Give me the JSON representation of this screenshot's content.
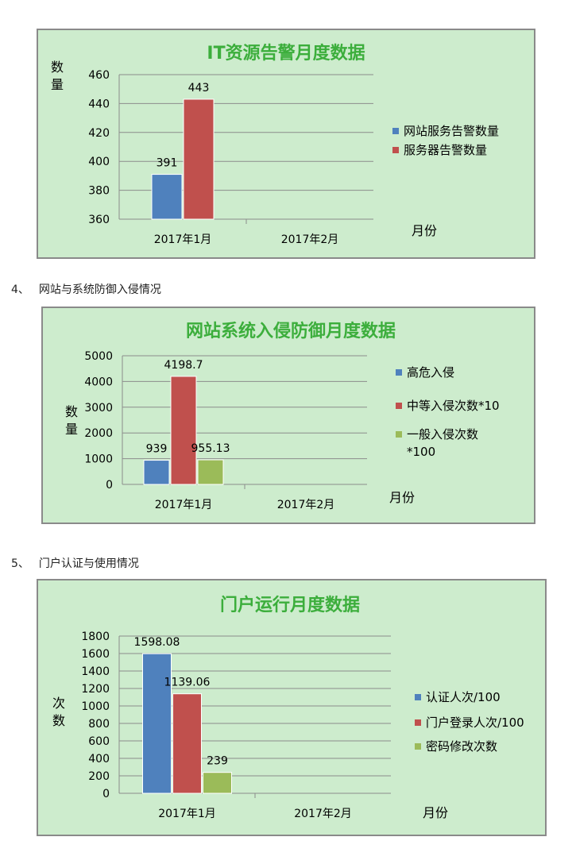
{
  "sections": [
    {
      "number": "4、",
      "title": "网站与系统防御入侵情况"
    },
    {
      "number": "5、",
      "title": "门户认证与使用情况"
    }
  ],
  "colors": {
    "blue": "#4f81bd",
    "red": "#c0504d",
    "green": "#9bbb59",
    "title": "#3cae3c",
    "panel_bg": "#cdeccd"
  },
  "chart_data": [
    {
      "type": "bar",
      "title": "IT资源告警月度数据",
      "ylabel": "数量",
      "xlabel": "月份",
      "categories": [
        "2017年1月",
        "2017年2月"
      ],
      "ylim": [
        360,
        460
      ],
      "yticks": [
        360,
        380,
        400,
        420,
        440,
        460
      ],
      "legend_position": "right",
      "series": [
        {
          "name": "网站服务告警数量",
          "color": "#4f81bd",
          "values": [
            391,
            null
          ],
          "labels": [
            "391",
            ""
          ]
        },
        {
          "name": "服务器告警数量",
          "color": "#c0504d",
          "values": [
            443,
            null
          ],
          "labels": [
            "443",
            ""
          ]
        }
      ]
    },
    {
      "type": "bar",
      "title": "网站系统入侵防御月度数据",
      "ylabel": "数量",
      "xlabel": "月份",
      "categories": [
        "2017年1月",
        "2017年2月"
      ],
      "ylim": [
        0,
        5000
      ],
      "yticks": [
        0,
        1000,
        2000,
        3000,
        4000,
        5000
      ],
      "legend_position": "right",
      "series": [
        {
          "name": "高危入侵",
          "color": "#4f81bd",
          "values": [
            939,
            null
          ],
          "labels": [
            "939",
            ""
          ]
        },
        {
          "name": "中等入侵次数*10",
          "color": "#c0504d",
          "values": [
            4198.7,
            null
          ],
          "labels": [
            "4198.7",
            ""
          ]
        },
        {
          "name": "一般入侵次数 *100",
          "color": "#9bbb59",
          "values": [
            955.13,
            null
          ],
          "labels": [
            "955.13",
            ""
          ]
        }
      ]
    },
    {
      "type": "bar",
      "title": "门户运行月度数据",
      "ylabel": "次数",
      "xlabel": "月份",
      "categories": [
        "2017年1月",
        "2017年2月"
      ],
      "ylim": [
        0,
        1800
      ],
      "yticks": [
        0,
        200,
        400,
        600,
        800,
        1000,
        1200,
        1400,
        1600,
        1800
      ],
      "legend_position": "right",
      "series": [
        {
          "name": "认证人次/100",
          "color": "#4f81bd",
          "values": [
            1598.08,
            null
          ],
          "labels": [
            "1598.08",
            ""
          ]
        },
        {
          "name": "门户登录人次/100",
          "color": "#c0504d",
          "values": [
            1139.06,
            null
          ],
          "labels": [
            "1139.06",
            ""
          ]
        },
        {
          "name": "密码修改次数",
          "color": "#9bbb59",
          "values": [
            239,
            null
          ],
          "labels": [
            "239",
            ""
          ]
        }
      ]
    }
  ]
}
